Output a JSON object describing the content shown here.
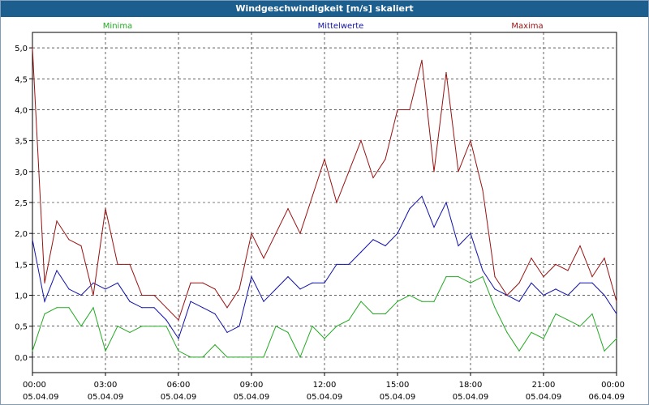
{
  "window": {
    "title": "Windgeschwindigkeit [m/s] skaliert"
  },
  "chart_data": {
    "type": "line",
    "title": "Windgeschwindigkeit [m/s] skaliert",
    "xlabel": "",
    "ylabel": "",
    "ylim": [
      -0.25,
      5.25
    ],
    "xlim": [
      0,
      24
    ],
    "grid": true,
    "y_ticks": [
      "5,0",
      "4,5",
      "4,0",
      "3,5",
      "3,0",
      "2,5",
      "2,0",
      "1,5",
      "1,0",
      "0,5",
      "0,0"
    ],
    "y_tick_values": [
      5.0,
      4.5,
      4.0,
      3.5,
      3.0,
      2.5,
      2.0,
      1.5,
      1.0,
      0.5,
      0.0
    ],
    "x_ticks": [
      {
        "time": "00:00",
        "date": "05.04.09"
      },
      {
        "time": "03:00",
        "date": "05.04.09"
      },
      {
        "time": "06:00",
        "date": "05.04.09"
      },
      {
        "time": "09:00",
        "date": "05.04.09"
      },
      {
        "time": "12:00",
        "date": "05.04.09"
      },
      {
        "time": "15:00",
        "date": "05.04.09"
      },
      {
        "time": "18:00",
        "date": "05.04.09"
      },
      {
        "time": "21:00",
        "date": "05.04.09"
      },
      {
        "time": "00:00",
        "date": "06.04.09"
      }
    ],
    "x_tick_values": [
      0,
      3,
      6,
      9,
      12,
      15,
      18,
      21,
      24
    ],
    "x_hours": [
      0.0,
      0.5,
      1.0,
      1.5,
      2.0,
      2.5,
      3.0,
      3.5,
      4.0,
      4.5,
      5.0,
      5.5,
      6.0,
      6.5,
      7.0,
      7.5,
      8.0,
      8.5,
      9.0,
      9.5,
      10.0,
      10.5,
      11.0,
      11.5,
      12.0,
      12.5,
      13.0,
      13.5,
      14.0,
      14.5,
      15.0,
      15.5,
      16.0,
      16.5,
      17.0,
      17.5,
      18.0,
      18.5,
      19.0,
      19.5,
      20.0,
      20.5,
      21.0,
      21.5,
      22.0,
      22.5,
      23.0,
      23.5,
      24.0
    ],
    "series": [
      {
        "name": "Minima",
        "color": "#22aa22",
        "values": [
          0.1,
          0.7,
          0.8,
          0.8,
          0.5,
          0.8,
          0.1,
          0.5,
          0.4,
          0.5,
          0.5,
          0.5,
          0.1,
          0.0,
          0.0,
          0.2,
          0.0,
          0.0,
          0.0,
          0.0,
          0.5,
          0.4,
          0.0,
          0.5,
          0.3,
          0.5,
          0.6,
          0.9,
          0.7,
          0.7,
          0.9,
          1.0,
          0.9,
          0.9,
          1.3,
          1.3,
          1.2,
          1.3,
          0.8,
          0.4,
          0.1,
          0.4,
          0.3,
          0.7,
          0.6,
          0.5,
          0.7,
          0.1,
          0.3
        ]
      },
      {
        "name": "Mittelwerte",
        "color": "#1111aa",
        "values": [
          1.9,
          0.9,
          1.4,
          1.1,
          1.0,
          1.2,
          1.1,
          1.2,
          0.9,
          0.8,
          0.8,
          0.6,
          0.3,
          0.9,
          0.8,
          0.7,
          0.4,
          0.5,
          1.3,
          0.9,
          1.1,
          1.3,
          1.1,
          1.2,
          1.2,
          1.5,
          1.5,
          1.7,
          1.9,
          1.8,
          2.0,
          2.4,
          2.6,
          2.1,
          2.5,
          1.8,
          2.0,
          1.4,
          1.1,
          1.0,
          0.9,
          1.2,
          1.0,
          1.1,
          1.0,
          1.2,
          1.2,
          1.0,
          0.7
        ]
      },
      {
        "name": "Maxima",
        "color": "#991111",
        "values": [
          5.0,
          1.2,
          2.2,
          1.9,
          1.8,
          1.0,
          2.4,
          1.5,
          1.5,
          1.0,
          1.0,
          0.8,
          0.6,
          1.2,
          1.2,
          1.1,
          0.8,
          1.1,
          2.0,
          1.6,
          2.0,
          2.4,
          2.0,
          2.6,
          3.2,
          2.5,
          3.0,
          3.5,
          2.9,
          3.2,
          4.0,
          4.0,
          4.8,
          3.0,
          4.6,
          3.0,
          3.5,
          2.7,
          1.3,
          1.0,
          1.2,
          1.6,
          1.3,
          1.5,
          1.4,
          1.8,
          1.3,
          1.6,
          0.9
        ]
      }
    ]
  }
}
